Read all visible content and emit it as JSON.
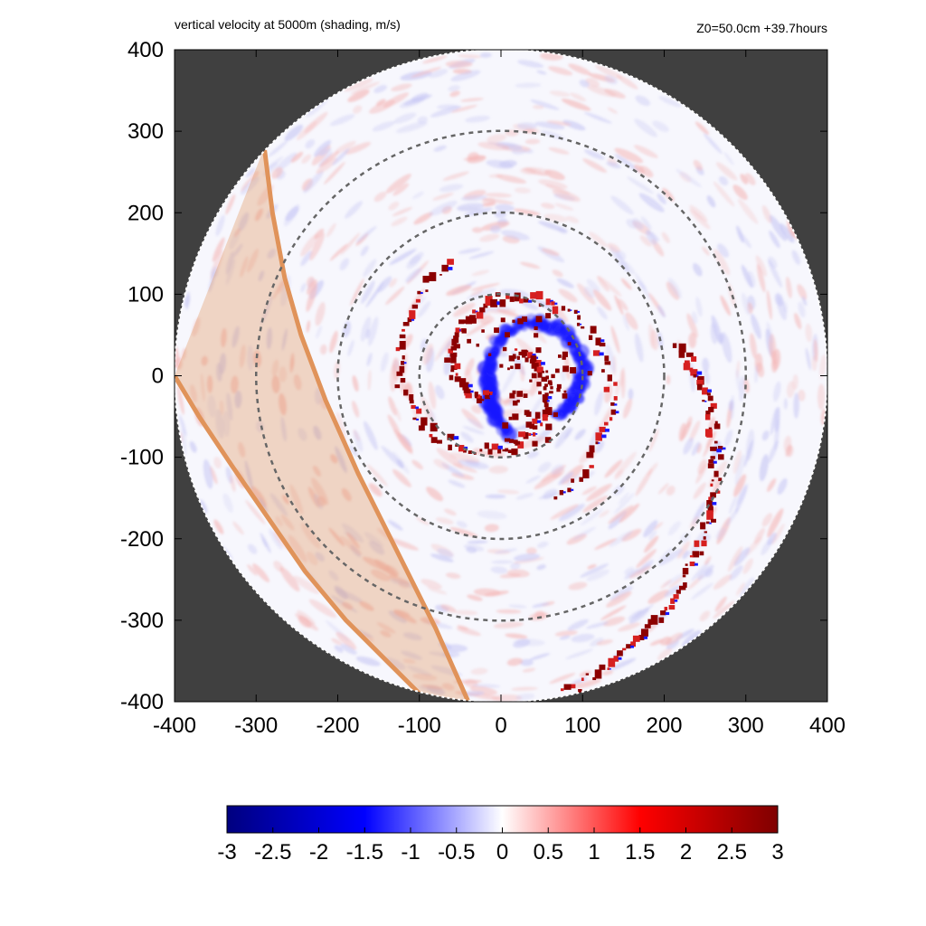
{
  "chart_data": {
    "type": "heatmap",
    "title": "vertical velocity at 5000m (shading, m/s)",
    "subtitle": "Z0=50.0cm  +39.7hours",
    "xlabel": "",
    "ylabel": "",
    "xlim": [
      -400,
      400
    ],
    "ylim": [
      -400,
      400
    ],
    "x_ticks": [
      "-400",
      "-300",
      "-200",
      "-100",
      "0",
      "100",
      "200",
      "300",
      "400"
    ],
    "y_ticks": [
      "400",
      "300",
      "200",
      "100",
      "0",
      "-100",
      "-200",
      "-300",
      "-400"
    ],
    "x_tick_values": [
      -400,
      -300,
      -200,
      -100,
      0,
      100,
      200,
      300,
      400
    ],
    "y_tick_values": [
      400,
      300,
      200,
      100,
      0,
      -100,
      -200,
      -300,
      -400
    ],
    "domain_radius": 400,
    "range_rings": [
      100,
      200,
      300
    ],
    "colorbar": {
      "min": -3,
      "max": 3,
      "ticks": [
        "-3",
        "-2.5",
        "-2",
        "-1.5",
        "-1",
        "-0.5",
        "0",
        "0.5",
        "1",
        "1.5",
        "2",
        "2.5",
        "3"
      ],
      "tick_values": [
        -3,
        -2.5,
        -2,
        -1.5,
        -1,
        -0.5,
        0,
        0.5,
        1,
        1.5,
        2,
        2.5,
        3
      ],
      "colors": [
        "#00007f",
        "#0000ff",
        "#ffffff",
        "#ff0000",
        "#7f0000"
      ]
    },
    "band": {
      "color": "#e0935a",
      "left_edge": [
        [
          -400,
          0
        ],
        [
          -370,
          -50
        ],
        [
          -330,
          -110
        ],
        [
          -285,
          -175
        ],
        [
          -240,
          -240
        ],
        [
          -190,
          -300
        ],
        [
          -140,
          -350
        ],
        [
          -90,
          -400
        ]
      ],
      "right_edge": [
        [
          -290,
          280
        ],
        [
          -280,
          200
        ],
        [
          -265,
          120
        ],
        [
          -245,
          50
        ],
        [
          -215,
          -30
        ],
        [
          -175,
          -120
        ],
        [
          -130,
          -210
        ],
        [
          -80,
          -310
        ],
        [
          -40,
          -400
        ]
      ]
    },
    "spiral_bands": [
      {
        "start_angle_deg": 60,
        "r0": 30,
        "r1": 150,
        "turns": 0.85
      },
      {
        "start_angle_deg": 240,
        "r0": 30,
        "r1": 160,
        "turns": 0.85
      },
      {
        "start_angle_deg": 10,
        "r0": 220,
        "r1": 400,
        "turns": 0.25
      }
    ],
    "colors": {
      "outside_domain": "#404040",
      "ring": "#666666",
      "strong_up": "#8b0000",
      "weak_up": "#f4b8b8",
      "strong_down": "#1a1aff",
      "weak_down": "#c8c8f4"
    }
  }
}
